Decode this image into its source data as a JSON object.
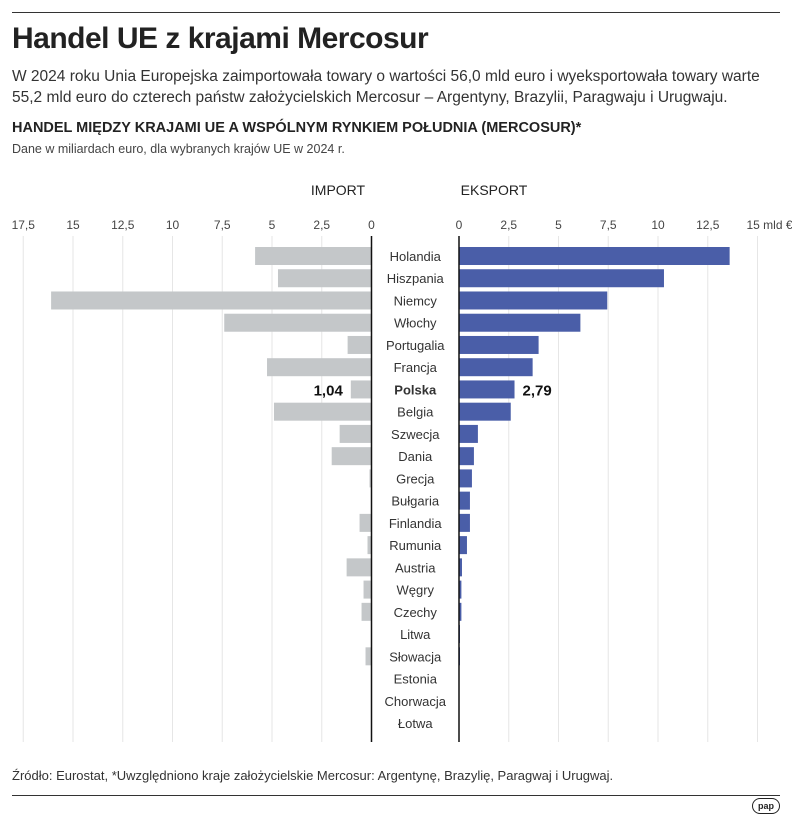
{
  "title": "Handel UE z krajami Mercosur",
  "lead": "W 2024 roku Unia Europejska zaimportowała towary o wartości 56,0 mld euro i wyeksportowała towary warte 55,2 mld euro do czterech państw założycielskich Mercosur – Argentyny, Brazylii, Paragwaju i Urugwaju.",
  "subtitle": "HANDEL MIĘDZY KRAJAMI UE A WSPÓLNYM RYNKIEM POŁUDNIA (MERCOSUR)*",
  "note": "Dane w miliardach euro, dla wybranych krajów UE w 2024 r.",
  "source": "Źródło: Eurostat, *Uwzględniono kraje założycielskie Mercosur: Argentynę, Brazylię, Paragwaj i Urugwaj.",
  "logo": "pap",
  "chart_data": {
    "type": "bar",
    "orientation": "horizontal-butterfly",
    "unit": "mld €",
    "categories": [
      "Holandia",
      "Hiszpania",
      "Niemcy",
      "Włochy",
      "Portugalia",
      "Francja",
      "Polska",
      "Belgia",
      "Szwecja",
      "Dania",
      "Grecja",
      "Bułgaria",
      "Finlandia",
      "Rumunia",
      "Austria",
      "Węgry",
      "Czechy",
      "Litwa",
      "Słowacja",
      "Estonia",
      "Chorwacja",
      "Łotwa"
    ],
    "highlight": "Polska",
    "series": [
      {
        "name": "IMPORT",
        "color": "#c4c7c9",
        "xlim": [
          0,
          17.5
        ],
        "ticks": [
          "17,5",
          "15",
          "12,5",
          "10",
          "7,5",
          "5",
          "2,5",
          "0"
        ],
        "values": [
          5.85,
          4.7,
          16.1,
          7.4,
          1.2,
          5.25,
          1.04,
          4.9,
          1.6,
          2.0,
          0.1,
          0,
          0.6,
          0.2,
          1.25,
          0.4,
          0.5,
          0,
          0.3,
          0,
          0,
          0
        ],
        "label": "1,04"
      },
      {
        "name": "EKSPORT",
        "color": "#4a5ea8",
        "xlim": [
          0,
          15
        ],
        "ticks": [
          "0",
          "2,5",
          "5",
          "7,5",
          "10",
          "12,5",
          "15 mld €"
        ],
        "values": [
          13.6,
          10.3,
          7.45,
          6.1,
          4.0,
          3.7,
          2.79,
          2.6,
          0.95,
          0.75,
          0.65,
          0.55,
          0.55,
          0.4,
          0.15,
          0.12,
          0.12,
          0.05,
          0.05,
          0,
          0,
          0
        ],
        "label": "2,79"
      }
    ]
  }
}
